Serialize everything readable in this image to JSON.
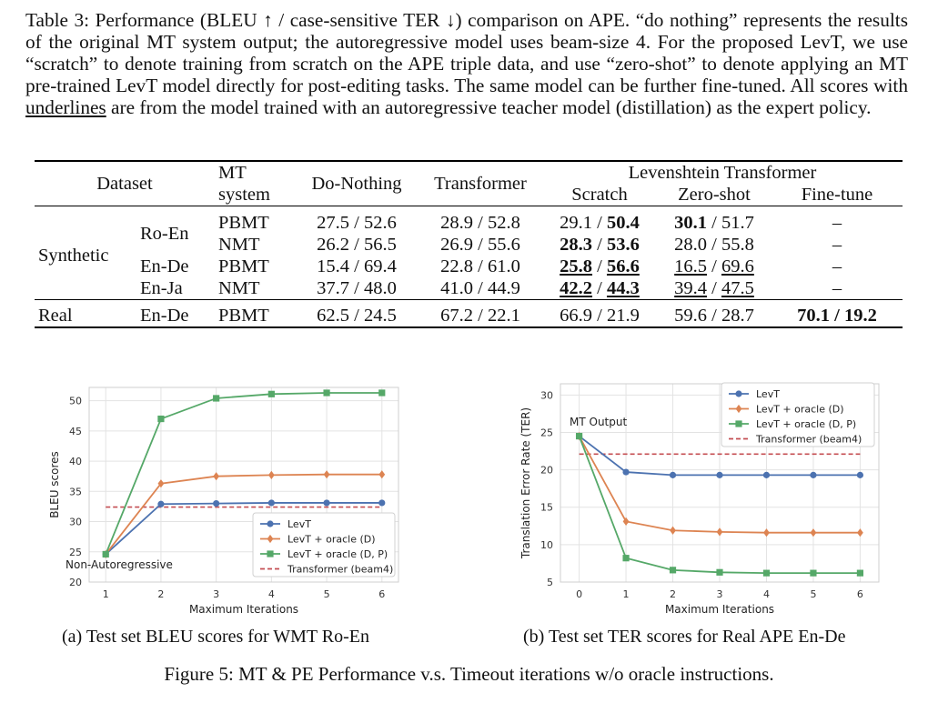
{
  "caption": {
    "p1": "Table 3: Performance (BLEU ↑ / case-sensitive TER ↓) comparison on APE. “do nothing” represents the results of the original MT system output; the autoregressive model uses beam-size 4. For the proposed LevT, we use “scratch” to denote training from scratch on the APE triple data, and use “zero-shot” to denote applying an MT pre-trained LevT model directly for post-editing tasks. The same model can be further fine-tuned. All scores with ",
    "underline_word": "underlines",
    "p2": " are from the model trained with an autoregressive teacher model (distillation) as the expert policy."
  },
  "table": {
    "headers": {
      "dataset": "Dataset",
      "mt_system_1": "MT",
      "mt_system_2": "system",
      "do_nothing": "Do-Nothing",
      "transformer": "Transformer",
      "levt": "Levenshtein Transformer",
      "scratch": "Scratch",
      "zero_shot": "Zero-shot",
      "fine_tune": "Fine-tune"
    },
    "synthetic_label": "Synthetic",
    "real_label": "Real",
    "rows": [
      {
        "pair": "Ro-En",
        "sys": "PBMT",
        "dn": "27.5 / 52.6",
        "tr": "28.9 / 52.8",
        "sc_a": "29.1",
        "sc_b": "50.4",
        "zs_a": "30.1",
        "zs_b": "51.7",
        "ft": "–"
      },
      {
        "pair": "",
        "sys": "NMT",
        "dn": "26.2 / 56.5",
        "tr": "26.9 / 55.6",
        "sc_a": "28.3",
        "sc_b": "53.6",
        "zs": "28.0 / 55.8",
        "ft": "–"
      },
      {
        "pair": "En-De",
        "sys": "PBMT",
        "dn": "15.4 / 69.4",
        "tr": "22.8 / 61.0",
        "sc_a": "25.8",
        "sc_b": "56.6",
        "zs_a": "16.5",
        "zs_b": "69.6",
        "ft": "–"
      },
      {
        "pair": "En-Ja",
        "sys": "NMT",
        "dn": "37.7 / 48.0",
        "tr": "41.0 / 44.9",
        "sc_a": "42.2",
        "sc_b": "44.3",
        "zs_a": "39.4",
        "zs_b": "47.5",
        "ft": "–"
      },
      {
        "pair": "En-De",
        "sys": "PBMT",
        "dn": "62.5 / 24.5",
        "tr": "67.2 / 22.1",
        "sc": "66.9 / 21.9",
        "zs": "59.6 / 28.7",
        "ft_a": "70.1",
        "ft_b": "19.2"
      }
    ],
    "sep": " / "
  },
  "subcaption_a": "(a) Test set BLEU scores for WMT Ro-En",
  "subcaption_b": "(b) Test set TER scores for Real APE En-De",
  "figure_caption": "Figure 5:  MT & PE Performance v.s. Timeout iterations w/o oracle instructions.",
  "colors": {
    "levt": "#4c72b0",
    "oracle_d": "#dd8452",
    "oracle_dp": "#55a868",
    "transformer": "#c44e52",
    "grid": "#e3e3e3"
  },
  "chart_data": [
    {
      "type": "line",
      "xlabel": "Maximum Iterations",
      "ylabel": "BLEU scores",
      "x": [
        1,
        2,
        3,
        4,
        5,
        6
      ],
      "xlim": [
        0.7,
        6.3
      ],
      "ylim": [
        20,
        52.2
      ],
      "xticks": [
        "1",
        "2",
        "3",
        "4",
        "5",
        "6"
      ],
      "yticks": [
        "20",
        "25",
        "30",
        "35",
        "40",
        "45",
        "50"
      ],
      "grid": true,
      "legend_position": "lower-right",
      "annotation": "Non-Autoregressive",
      "series": [
        {
          "name": "LevT",
          "marker": "circle",
          "values": [
            24.6,
            32.9,
            33.0,
            33.1,
            33.1,
            33.1
          ]
        },
        {
          "name": "LevT + oracle (D)",
          "marker": "diamond",
          "values": [
            24.6,
            36.3,
            37.5,
            37.7,
            37.8,
            37.8
          ]
        },
        {
          "name": "LevT + oracle (D, P)",
          "marker": "square",
          "values": [
            24.6,
            47.0,
            50.4,
            51.1,
            51.3,
            51.3
          ]
        }
      ],
      "baseline": {
        "name": "Transformer (beam4)",
        "value": 32.4,
        "x_range": [
          1,
          6
        ]
      }
    },
    {
      "type": "line",
      "xlabel": "Maximum Iterations",
      "ylabel": "Translation Error Rate (TER)",
      "x": [
        0,
        1,
        2,
        3,
        4,
        5,
        6
      ],
      "xlim": [
        -0.4,
        6.4
      ],
      "ylim": [
        5,
        31.5
      ],
      "xticks": [
        "0",
        "1",
        "2",
        "3",
        "4",
        "5",
        "6"
      ],
      "yticks": [
        "5",
        "10",
        "15",
        "20",
        "25",
        "30"
      ],
      "grid": true,
      "legend_position": "top-right",
      "annotation": "MT Output",
      "series": [
        {
          "name": "LevT",
          "marker": "circle",
          "values": [
            24.5,
            19.7,
            19.3,
            19.3,
            19.3,
            19.3,
            19.3
          ]
        },
        {
          "name": "LevT + oracle (D)",
          "marker": "diamond",
          "values": [
            24.5,
            13.1,
            11.9,
            11.7,
            11.6,
            11.6,
            11.6
          ]
        },
        {
          "name": "LevT + oracle (D, P)",
          "marker": "square",
          "values": [
            24.5,
            8.2,
            6.6,
            6.3,
            6.2,
            6.2,
            6.2
          ]
        }
      ],
      "baseline": {
        "name": "Transformer (beam4)",
        "value": 22.1,
        "x_range": [
          0,
          6
        ]
      }
    }
  ]
}
